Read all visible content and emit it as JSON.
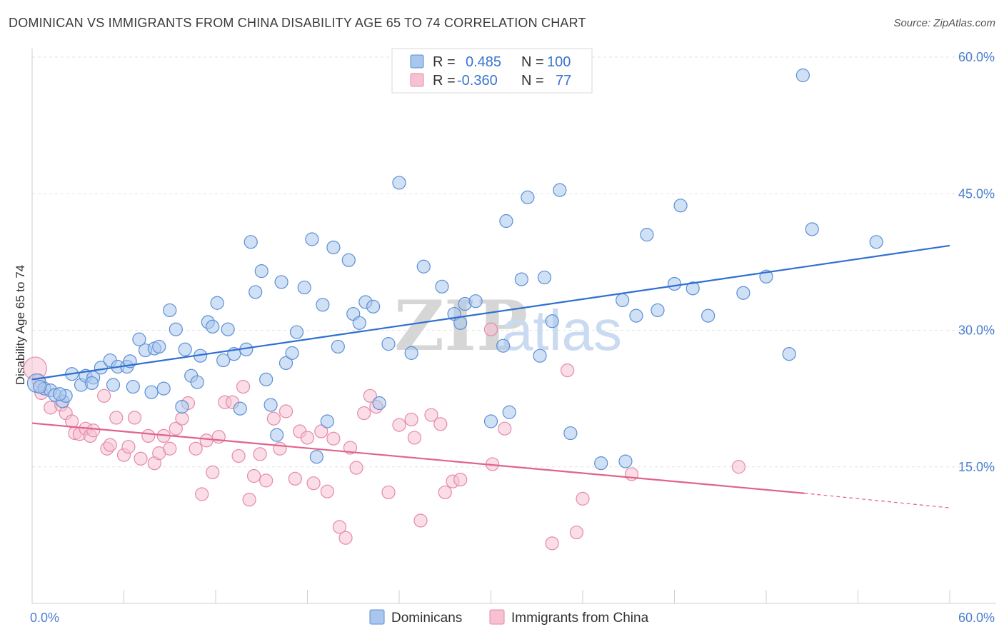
{
  "header": {
    "title": "DOMINICAN VS IMMIGRANTS FROM CHINA DISABILITY AGE 65 TO 74 CORRELATION CHART",
    "source": "Source: ZipAtlas.com"
  },
  "watermark": {
    "zip": "ZIP",
    "atlas": "atlas"
  },
  "colors": {
    "blue_fill": "#a9c6ec",
    "blue_stroke": "#5b8fd6",
    "blue_line": "#2f6fd0",
    "pink_fill": "#f6c1d1",
    "pink_stroke": "#e58aa7",
    "pink_line": "#e0638d",
    "grid": "#e3e3e3",
    "tick_label": "#4a7fcf"
  },
  "legend": {
    "rows": [
      {
        "r_label": "R =",
        "r_value": "0.485",
        "n_label": "N =",
        "n_value": "100"
      },
      {
        "r_label": "R =",
        "r_value": "-0.360",
        "n_label": "N =",
        "n_value": "77"
      }
    ]
  },
  "bottom_legend": {
    "series1": "Dominicans",
    "series2": "Immigrants from China"
  },
  "chart_data": {
    "type": "scatter",
    "title": "DOMINICAN VS IMMIGRANTS FROM CHINA DISABILITY AGE 65 TO 74 CORRELATION CHART",
    "xlabel": "",
    "ylabel": "Disability Age 65 to 74",
    "xlim": [
      0,
      60
    ],
    "ylim": [
      0,
      60
    ],
    "x_tick_labels": [
      "0.0%",
      "60.0%"
    ],
    "y_ticks": [
      15,
      30,
      45,
      60
    ],
    "y_tick_labels": [
      "15.0%",
      "30.0%",
      "45.0%",
      "60.0%"
    ],
    "grid": true,
    "legend_position": "top-center",
    "series": [
      {
        "name": "Dominicans",
        "color": "#a9c6ec",
        "trend": {
          "x": [
            0,
            60
          ],
          "y": [
            24.6,
            39.3
          ]
        },
        "points": [
          [
            0.3,
            24.2
          ],
          [
            0.8,
            23.6
          ],
          [
            1.2,
            23.4
          ],
          [
            1.5,
            22.9
          ],
          [
            2.0,
            22.2
          ],
          [
            2.2,
            22.8
          ],
          [
            2.6,
            25.2
          ],
          [
            3.2,
            24.0
          ],
          [
            3.5,
            25.0
          ],
          [
            4.0,
            24.8
          ],
          [
            4.5,
            25.9
          ],
          [
            5.1,
            26.7
          ],
          [
            5.3,
            24.0
          ],
          [
            5.6,
            26.0
          ],
          [
            6.2,
            26.0
          ],
          [
            6.4,
            26.6
          ],
          [
            6.6,
            23.8
          ],
          [
            7.0,
            29.0
          ],
          [
            7.4,
            27.8
          ],
          [
            7.8,
            23.2
          ],
          [
            8.0,
            28.0
          ],
          [
            8.3,
            28.2
          ],
          [
            8.6,
            23.6
          ],
          [
            9.0,
            32.2
          ],
          [
            9.4,
            30.1
          ],
          [
            9.8,
            21.6
          ],
          [
            10.0,
            27.9
          ],
          [
            10.4,
            25.0
          ],
          [
            10.8,
            24.3
          ],
          [
            11.0,
            27.2
          ],
          [
            11.5,
            30.9
          ],
          [
            11.8,
            30.4
          ],
          [
            12.1,
            33.0
          ],
          [
            12.5,
            26.7
          ],
          [
            12.8,
            30.1
          ],
          [
            13.2,
            27.4
          ],
          [
            13.6,
            21.4
          ],
          [
            14.0,
            27.9
          ],
          [
            14.3,
            39.7
          ],
          [
            14.6,
            34.2
          ],
          [
            15.0,
            36.5
          ],
          [
            15.3,
            24.6
          ],
          [
            15.6,
            21.8
          ],
          [
            16.0,
            18.5
          ],
          [
            16.3,
            35.3
          ],
          [
            16.6,
            26.4
          ],
          [
            17.0,
            27.5
          ],
          [
            17.3,
            29.8
          ],
          [
            17.8,
            34.7
          ],
          [
            18.3,
            40.0
          ],
          [
            18.6,
            16.1
          ],
          [
            19.0,
            32.8
          ],
          [
            19.3,
            20.0
          ],
          [
            19.7,
            39.1
          ],
          [
            20.0,
            28.2
          ],
          [
            20.7,
            37.7
          ],
          [
            21.0,
            31.8
          ],
          [
            21.4,
            30.8
          ],
          [
            21.8,
            33.1
          ],
          [
            22.3,
            32.6
          ],
          [
            22.7,
            22.0
          ],
          [
            23.3,
            28.5
          ],
          [
            24.0,
            46.2
          ],
          [
            24.8,
            27.5
          ],
          [
            25.6,
            37.0
          ],
          [
            26.8,
            34.8
          ],
          [
            27.6,
            31.8
          ],
          [
            28.0,
            30.8
          ],
          [
            28.3,
            32.9
          ],
          [
            29.0,
            33.2
          ],
          [
            30.0,
            20.0
          ],
          [
            30.8,
            28.3
          ],
          [
            31.0,
            42.0
          ],
          [
            31.2,
            21.0
          ],
          [
            32.0,
            35.6
          ],
          [
            32.4,
            44.6
          ],
          [
            33.2,
            27.2
          ],
          [
            33.5,
            35.8
          ],
          [
            34.0,
            31.0
          ],
          [
            34.5,
            45.4
          ],
          [
            35.2,
            18.7
          ],
          [
            37.2,
            15.4
          ],
          [
            38.6,
            33.3
          ],
          [
            38.8,
            15.6
          ],
          [
            39.5,
            31.6
          ],
          [
            40.2,
            40.5
          ],
          [
            40.9,
            32.2
          ],
          [
            42.0,
            35.1
          ],
          [
            42.4,
            43.7
          ],
          [
            43.2,
            34.6
          ],
          [
            44.2,
            31.6
          ],
          [
            46.5,
            34.1
          ],
          [
            48.0,
            35.9
          ],
          [
            49.5,
            27.4
          ],
          [
            50.4,
            58.0
          ],
          [
            51.0,
            41.1
          ],
          [
            55.2,
            39.7
          ],
          [
            0.5,
            23.8
          ],
          [
            1.8,
            23.0
          ],
          [
            3.9,
            24.2
          ]
        ]
      },
      {
        "name": "Immigrants from China",
        "color": "#f6c1d1",
        "trend": {
          "x": [
            0,
            50.5
          ],
          "y": [
            19.8,
            12.1
          ],
          "dashed_to": {
            "x": 60,
            "y": 10.5
          }
        },
        "points": [
          [
            0.2,
            25.8
          ],
          [
            0.6,
            23.1
          ],
          [
            1.2,
            21.5
          ],
          [
            1.9,
            21.8
          ],
          [
            2.2,
            20.9
          ],
          [
            2.6,
            20.0
          ],
          [
            2.8,
            18.7
          ],
          [
            3.1,
            18.6
          ],
          [
            3.5,
            19.2
          ],
          [
            3.8,
            18.4
          ],
          [
            4.0,
            19.0
          ],
          [
            4.7,
            22.8
          ],
          [
            4.9,
            17.0
          ],
          [
            5.1,
            17.4
          ],
          [
            5.5,
            20.4
          ],
          [
            6.0,
            16.3
          ],
          [
            6.3,
            17.2
          ],
          [
            6.7,
            20.4
          ],
          [
            7.1,
            15.9
          ],
          [
            7.6,
            18.4
          ],
          [
            8.0,
            15.4
          ],
          [
            8.3,
            16.5
          ],
          [
            8.6,
            18.4
          ],
          [
            9.0,
            17.0
          ],
          [
            9.4,
            19.2
          ],
          [
            9.8,
            20.3
          ],
          [
            10.2,
            22.0
          ],
          [
            10.7,
            17.0
          ],
          [
            11.1,
            12.0
          ],
          [
            11.4,
            17.9
          ],
          [
            11.8,
            14.4
          ],
          [
            12.2,
            18.3
          ],
          [
            12.6,
            22.1
          ],
          [
            13.1,
            22.1
          ],
          [
            13.5,
            16.2
          ],
          [
            13.8,
            23.8
          ],
          [
            14.2,
            11.4
          ],
          [
            14.5,
            14.0
          ],
          [
            14.9,
            16.4
          ],
          [
            15.3,
            13.5
          ],
          [
            15.8,
            20.3
          ],
          [
            16.2,
            17.0
          ],
          [
            16.6,
            21.1
          ],
          [
            17.2,
            13.7
          ],
          [
            17.5,
            18.9
          ],
          [
            18.0,
            18.2
          ],
          [
            18.4,
            13.2
          ],
          [
            18.9,
            18.9
          ],
          [
            19.3,
            12.3
          ],
          [
            19.7,
            18.1
          ],
          [
            20.1,
            8.4
          ],
          [
            20.5,
            7.2
          ],
          [
            20.8,
            17.1
          ],
          [
            21.2,
            14.9
          ],
          [
            21.7,
            20.9
          ],
          [
            22.1,
            22.8
          ],
          [
            22.5,
            21.6
          ],
          [
            23.3,
            12.2
          ],
          [
            24.0,
            19.6
          ],
          [
            24.8,
            20.2
          ],
          [
            25.0,
            18.2
          ],
          [
            25.4,
            9.1
          ],
          [
            26.1,
            20.7
          ],
          [
            26.7,
            19.7
          ],
          [
            27.0,
            12.2
          ],
          [
            27.5,
            13.4
          ],
          [
            28.0,
            13.6
          ],
          [
            30.0,
            30.1
          ],
          [
            30.1,
            15.3
          ],
          [
            30.9,
            19.2
          ],
          [
            34.0,
            6.6
          ],
          [
            35.0,
            25.6
          ],
          [
            35.6,
            7.8
          ],
          [
            36.0,
            11.5
          ],
          [
            39.2,
            14.2
          ],
          [
            46.2,
            15.0
          ],
          [
            0.4,
            24.5
          ]
        ]
      }
    ]
  }
}
